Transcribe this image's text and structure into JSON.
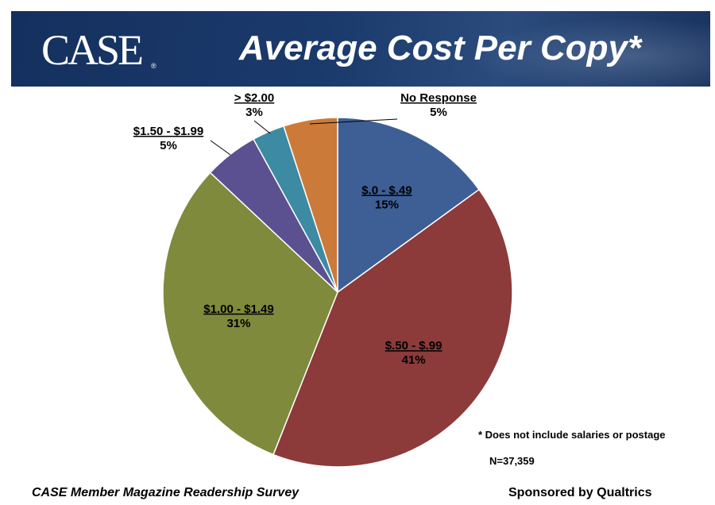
{
  "header": {
    "logo_text": "CASE",
    "logo_mark": "®",
    "title": "Average Cost Per Copy*"
  },
  "chart_data": {
    "type": "pie",
    "title": "Average Cost Per Copy*",
    "start_angle_deg": 0,
    "direction": "clockwise",
    "slices": [
      {
        "name": "$.0 - $.49",
        "value": 15,
        "label": "15%",
        "color": "#3d5f96"
      },
      {
        "name": "$.50 - $.99",
        "value": 41,
        "label": "41%",
        "color": "#8c3a3a"
      },
      {
        "name": "$1.00 - $1.49",
        "value": 31,
        "label": "31%",
        "color": "#7f8a3c"
      },
      {
        "name": "$1.50 - $1.99",
        "value": 5,
        "label": "5%",
        "color": "#5b5190"
      },
      {
        "name": "> $2.00",
        "value": 3,
        "label": "3%",
        "color": "#3d8aa3"
      },
      {
        "name": "No Response",
        "value": 5,
        "label": "5%",
        "color": "#cc7a3a"
      }
    ]
  },
  "notes": {
    "footnote": "* Does not include salaries or postage",
    "n": "N=37,359"
  },
  "footer": {
    "left": "CASE Member Magazine Readership Survey",
    "right": "Sponsored by Qualtrics"
  }
}
